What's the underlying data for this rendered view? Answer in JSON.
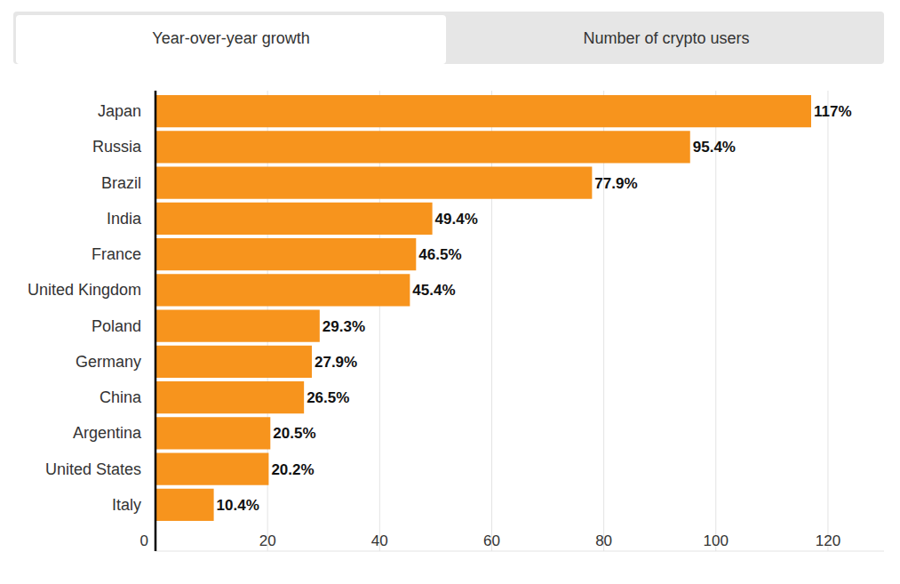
{
  "tabs": [
    "Year-over-year growth",
    "Number of crypto users"
  ],
  "chart_data": {
    "type": "bar",
    "orientation": "horizontal",
    "categories": [
      "Japan",
      "Russia",
      "Brazil",
      "India",
      "France",
      "United Kingdom",
      "Poland",
      "Germany",
      "China",
      "Argentina",
      "United States",
      "Italy"
    ],
    "values": [
      117,
      95.4,
      77.9,
      49.4,
      46.5,
      45.4,
      29.3,
      27.9,
      26.5,
      20.5,
      20.2,
      10.4
    ],
    "value_labels": [
      "117%",
      "95.4%",
      "77.9%",
      "49.4%",
      "46.5%",
      "45.4%",
      "29.3%",
      "27.9%",
      "26.5%",
      "20.5%",
      "20.2%",
      "10.4%"
    ],
    "color": "#f7941d",
    "xlim": [
      0,
      130
    ],
    "xticks": [
      0,
      20,
      40,
      60,
      80,
      100,
      120
    ],
    "grid": true,
    "data_labels": true
  }
}
